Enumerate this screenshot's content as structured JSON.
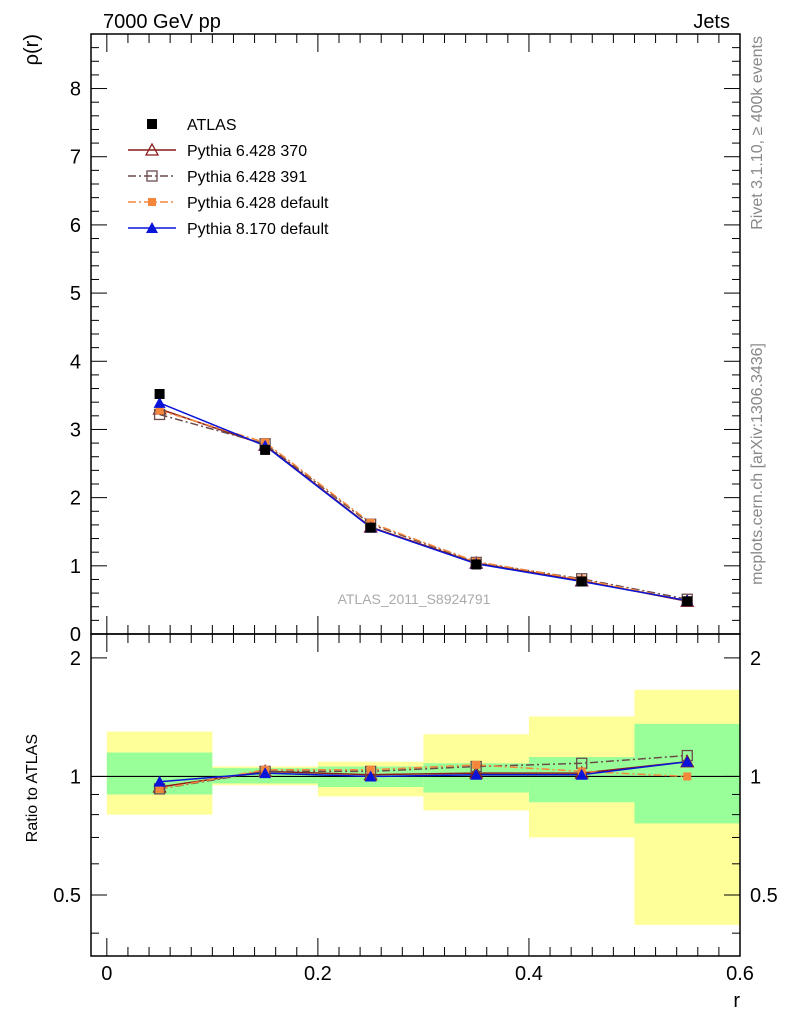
{
  "header": {
    "left": "7000 GeV pp",
    "right": "Jets"
  },
  "side_text": {
    "top": "Rivet 3.1.10, ≥ 400k events",
    "bottom": "mcplots.cern.ch [arXiv:1306.3436]"
  },
  "watermark": "ATLAS_2011_S8924791",
  "colors": {
    "atlas": "#000000",
    "p370": "#8b1a1a",
    "p391": "#6b4a4a",
    "pdef": "#f4873b",
    "p8": "#0a14d8",
    "band_yellow": "#ffff99",
    "band_green": "#99ff99"
  },
  "chart_data": [
    {
      "type": "line",
      "name": "main",
      "xlabel": "r",
      "ylabel": "ρ(r)",
      "xlim": [
        -0.015,
        0.6
      ],
      "ylim": [
        0,
        8.8
      ],
      "yticks": [
        0,
        1,
        2,
        3,
        4,
        5,
        6,
        7,
        8
      ],
      "x": [
        0.05,
        0.15,
        0.25,
        0.35,
        0.45,
        0.55
      ],
      "series": [
        {
          "name": "ATLAS",
          "marker": "filled-square",
          "line": "none",
          "values": [
            3.52,
            2.7,
            1.56,
            1.02,
            0.77,
            0.48
          ]
        },
        {
          "name": "Pythia 6.428 370",
          "marker": "open-triangle",
          "line": "solid",
          "values": [
            3.3,
            2.77,
            1.57,
            1.04,
            0.78,
            0.48
          ]
        },
        {
          "name": "Pythia 6.428 391",
          "marker": "open-square",
          "line": "dashdot",
          "values": [
            3.22,
            2.79,
            1.61,
            1.05,
            0.81,
            0.51
          ]
        },
        {
          "name": "Pythia 6.428 default",
          "marker": "small-filled-square",
          "line": "dashdot",
          "values": [
            3.28,
            2.81,
            1.63,
            1.06,
            0.8,
            0.49
          ]
        },
        {
          "name": "Pythia 8.170 default",
          "marker": "filled-triangle",
          "line": "solid",
          "values": [
            3.39,
            2.76,
            1.56,
            1.03,
            0.77,
            0.49
          ]
        }
      ],
      "legend_position": "top-left"
    },
    {
      "type": "line",
      "name": "ratio",
      "xlabel": "r",
      "ylabel": "Ratio to ATLAS",
      "xlim": [
        -0.015,
        0.6
      ],
      "ylim": [
        0.35,
        2.3
      ],
      "yticks": [
        0.5,
        1,
        2
      ],
      "xticks": [
        0,
        0.2,
        0.4,
        0.6
      ],
      "x": [
        0.05,
        0.15,
        0.25,
        0.35,
        0.45,
        0.55
      ],
      "bins": [
        [
          0.0,
          0.1
        ],
        [
          0.1,
          0.2
        ],
        [
          0.2,
          0.3
        ],
        [
          0.3,
          0.4
        ],
        [
          0.4,
          0.5
        ],
        [
          0.5,
          0.6
        ]
      ],
      "band_stat": [
        [
          0.9,
          1.15
        ],
        [
          0.96,
          1.05
        ],
        [
          0.94,
          1.06
        ],
        [
          0.91,
          1.08
        ],
        [
          0.86,
          1.12
        ],
        [
          0.76,
          1.36
        ]
      ],
      "band_total": [
        [
          0.8,
          1.3
        ],
        [
          0.95,
          1.06
        ],
        [
          0.89,
          1.09
        ],
        [
          0.82,
          1.28
        ],
        [
          0.7,
          1.42
        ],
        [
          0.42,
          1.66
        ]
      ],
      "series": [
        {
          "name": "Pythia 6.428 370",
          "values": [
            0.94,
            1.03,
            1.01,
            1.02,
            1.02,
            1.09
          ]
        },
        {
          "name": "Pythia 6.428 391",
          "values": [
            0.93,
            1.03,
            1.03,
            1.06,
            1.08,
            1.13
          ]
        },
        {
          "name": "Pythia 6.428 default",
          "values": [
            0.93,
            1.04,
            1.04,
            1.07,
            1.03,
            1.0
          ]
        },
        {
          "name": "Pythia 8.170 default",
          "values": [
            0.97,
            1.02,
            1.0,
            1.01,
            1.01,
            1.09
          ]
        }
      ]
    }
  ]
}
